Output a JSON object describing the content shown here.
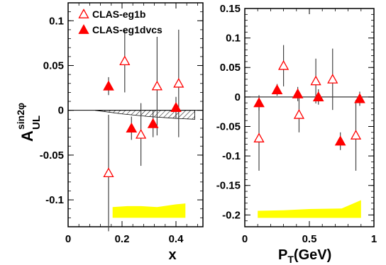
{
  "chart_data": [
    {
      "type": "scatter",
      "panel": "left",
      "xlabel": "x",
      "ylabel_main": "A",
      "ylabel_sub": "UL",
      "ylabel_sup": "sin2φ",
      "xlim": [
        0,
        0.5
      ],
      "ylim": [
        -0.13,
        0.12
      ],
      "x_ticks": [
        0,
        0.2,
        0.4
      ],
      "x_tick_labels": [
        "0",
        "0.2",
        "0.4"
      ],
      "y_ticks": [
        -0.1,
        -0.05,
        0,
        0.05,
        0.1
      ],
      "y_tick_labels": [
        "-0.1",
        "-0.05",
        "0",
        "0.05",
        "0.1"
      ],
      "legend": {
        "placement": "top-left",
        "entries": [
          {
            "label": "CLAS-eg1b",
            "marker": "open-triangle",
            "color": "#ff0000"
          },
          {
            "label": "CLAS-eg1dvcs",
            "marker": "filled-triangle",
            "color": "#ff0000"
          }
        ]
      },
      "series": [
        {
          "name": "CLAS-eg1b",
          "marker": "open-triangle",
          "color": "#ff0000",
          "points": [
            {
              "x": 0.15,
              "y": -0.07,
              "err": 0.065
            },
            {
              "x": 0.21,
              "y": 0.055,
              "err": 0.035
            },
            {
              "x": 0.27,
              "y": -0.027,
              "err": 0.035
            },
            {
              "x": 0.33,
              "y": 0.027,
              "err": 0.055
            },
            {
              "x": 0.41,
              "y": 0.03,
              "err": 0.06
            }
          ]
        },
        {
          "name": "CLAS-eg1dvcs",
          "marker": "filled-triangle",
          "color": "#ff0000",
          "points": [
            {
              "x": 0.15,
              "y": 0.027,
              "err": 0.01
            },
            {
              "x": 0.235,
              "y": -0.02,
              "err": 0.013
            },
            {
              "x": 0.315,
              "y": -0.015,
              "err": 0.015
            },
            {
              "x": 0.4,
              "y": 0.003,
              "err": 0.012
            }
          ]
        }
      ],
      "systematic_band": {
        "color": "#ffff00",
        "x": [
          0.165,
          0.22,
          0.27,
          0.33,
          0.4,
          0.435
        ],
        "y_low": [
          -0.12,
          -0.12,
          -0.12,
          -0.12,
          -0.12,
          -0.12
        ],
        "y_high": [
          -0.108,
          -0.107,
          -0.107,
          -0.108,
          -0.105,
          -0.104
        ]
      },
      "model_band": {
        "pattern": "hatched",
        "x": [
          0.1,
          0.2,
          0.3,
          0.4,
          0.47
        ],
        "y_low": [
          0,
          -0.004,
          -0.007,
          -0.009,
          -0.01
        ],
        "y_high": [
          0,
          0,
          0,
          0,
          0
        ]
      }
    },
    {
      "type": "scatter",
      "panel": "right",
      "xlabel_main": "P",
      "xlabel_sub": "T",
      "xlabel_unit": "(GeV)",
      "xlim": [
        0,
        1
      ],
      "ylim": [
        -0.22,
        0.15
      ],
      "x_ticks": [
        0,
        0.5,
        1
      ],
      "x_tick_labels": [
        "0",
        "0.5",
        "1"
      ],
      "y_ticks": [
        -0.2,
        -0.15,
        -0.1,
        -0.05,
        0,
        0.05,
        0.1,
        0.15
      ],
      "y_tick_labels": [
        "-0.2",
        "-0.15",
        "-0.1",
        "-0.05",
        "0",
        "0.05",
        "0.1",
        "0.15"
      ],
      "series": [
        {
          "name": "CLAS-eg1b",
          "marker": "open-triangle",
          "color": "#ff0000",
          "points": [
            {
              "x": 0.11,
              "y": -0.07,
              "err": 0.055
            },
            {
              "x": 0.3,
              "y": 0.053,
              "err": 0.035
            },
            {
              "x": 0.42,
              "y": -0.03,
              "err": 0.03
            },
            {
              "x": 0.55,
              "y": 0.027,
              "err": 0.038
            },
            {
              "x": 0.68,
              "y": 0.03,
              "err": 0.052
            },
            {
              "x": 0.86,
              "y": -0.065,
              "err": 0.06
            }
          ]
        },
        {
          "name": "CLAS-eg1dvcs",
          "marker": "filled-triangle",
          "color": "#ff0000",
          "points": [
            {
              "x": 0.11,
              "y": -0.01,
              "err": 0.013
            },
            {
              "x": 0.25,
              "y": 0.012,
              "err": 0.01
            },
            {
              "x": 0.41,
              "y": 0.005,
              "err": 0.012
            },
            {
              "x": 0.57,
              "y": 0.0,
              "err": 0.013
            },
            {
              "x": 0.74,
              "y": -0.075,
              "err": 0.015
            },
            {
              "x": 0.89,
              "y": -0.003,
              "err": 0.012
            }
          ]
        }
      ],
      "systematic_band": {
        "color": "#ffff00",
        "x": [
          0.1,
          0.3,
          0.5,
          0.75,
          0.9
        ],
        "y_low": [
          -0.205,
          -0.205,
          -0.205,
          -0.205,
          -0.205
        ],
        "y_high": [
          -0.193,
          -0.192,
          -0.19,
          -0.189,
          -0.175
        ]
      }
    }
  ]
}
